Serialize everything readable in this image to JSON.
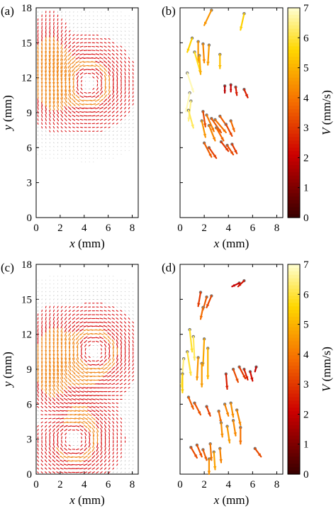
{
  "chart_data": [
    {
      "panel": "(a)",
      "type": "quiver",
      "xlabel": "x (mm)",
      "ylabel": "y (mm)",
      "xlim": [
        0,
        8.5
      ],
      "ylim": [
        0,
        18
      ],
      "xticks": [
        0,
        2,
        4,
        6,
        8
      ],
      "yticks": [
        0,
        3,
        6,
        9,
        12,
        15,
        18
      ],
      "field": "dense vector field; counter-clockwise vortex centred near (4.3, 11.5) mm, strongest velocities near x≈1, y≈13 mm",
      "vortex_centers": [
        [
          4.3,
          11.5
        ]
      ]
    },
    {
      "panel": "(b)",
      "type": "quiver",
      "xlabel": "x (mm)",
      "xlim": [
        0,
        8.5
      ],
      "ylim": [
        0,
        18
      ],
      "xticks": [
        0,
        2,
        4,
        6,
        8
      ],
      "colorbar": {
        "label": "V (mm/s)",
        "range": [
          0,
          7
        ],
        "ticks": [
          0,
          1,
          2,
          3,
          4,
          5,
          6,
          7
        ]
      },
      "arrows": [
        [
          2.6,
          17.8,
          -0.6,
          -1.3,
          4.5
        ],
        [
          5.3,
          17.5,
          -0.3,
          -1.4,
          5.5
        ],
        [
          1.0,
          15.4,
          -0.4,
          -1.2,
          5.5
        ],
        [
          1.5,
          15.1,
          0.0,
          -1.8,
          4.5
        ],
        [
          1.9,
          14.9,
          0.1,
          -1.6,
          4.3
        ],
        [
          2.4,
          14.8,
          -0.1,
          -1.7,
          4.6
        ],
        [
          1.2,
          14.2,
          0.5,
          -1.8,
          5.8
        ],
        [
          1.6,
          13.9,
          0.1,
          -1.6,
          4.9
        ],
        [
          3.3,
          14.0,
          0.0,
          -1.2,
          5.2
        ],
        [
          0.6,
          12.4,
          0.5,
          -1.6,
          6.8
        ],
        [
          3.7,
          11.3,
          0.0,
          -0.6,
          1.8
        ],
        [
          4.2,
          11.4,
          0.0,
          -0.6,
          2.1
        ],
        [
          4.6,
          11.2,
          0.1,
          -0.7,
          2.5
        ],
        [
          5.3,
          11.0,
          0.3,
          -0.7,
          2.6
        ],
        [
          0.8,
          10.7,
          -0.3,
          -1.6,
          6.8
        ],
        [
          0.9,
          10.0,
          -0.2,
          -1.7,
          6.5
        ],
        [
          0.7,
          9.2,
          0.4,
          -1.5,
          6.2
        ],
        [
          1.9,
          9.1,
          0.2,
          -1.3,
          3.3
        ],
        [
          2.2,
          8.8,
          0.6,
          -1.4,
          4.0
        ],
        [
          2.6,
          8.5,
          0.8,
          -1.2,
          3.5
        ],
        [
          2.9,
          8.4,
          0.9,
          -1.1,
          3.9
        ],
        [
          3.3,
          8.7,
          0.6,
          -0.9,
          3.6
        ],
        [
          1.8,
          8.3,
          0.3,
          -1.4,
          4.5
        ],
        [
          2.4,
          7.9,
          0.5,
          -1.3,
          4.2
        ],
        [
          3.0,
          7.7,
          0.6,
          -1.1,
          3.7
        ],
        [
          3.8,
          8.0,
          0.5,
          -1.0,
          3.2
        ],
        [
          4.2,
          8.3,
          0.3,
          -0.9,
          3.8
        ],
        [
          2.0,
          6.4,
          0.6,
          -1.2,
          3.6
        ],
        [
          2.4,
          6.0,
          0.6,
          -0.9,
          3.1
        ],
        [
          3.4,
          6.5,
          0.6,
          -0.8,
          3.0
        ],
        [
          3.9,
          6.2,
          0.5,
          -0.8,
          3.3
        ],
        [
          4.3,
          6.3,
          0.4,
          -0.8,
          3.0
        ]
      ]
    },
    {
      "panel": "(c)",
      "type": "quiver",
      "xlabel": "x (mm)",
      "ylabel": "y (mm)",
      "xlim": [
        0,
        8.5
      ],
      "ylim": [
        0,
        18
      ],
      "xticks": [
        0,
        2,
        4,
        6,
        8
      ],
      "yticks": [
        0,
        3,
        6,
        9,
        12,
        15,
        18
      ],
      "field": "dense vector field; upper counter-clockwise vortex near (4.8, 10.5) mm and lower clockwise vortex near (3.2, 3.0) mm, strongest velocities near x≈1, y≈9 mm",
      "vortex_centers": [
        [
          4.8,
          10.5
        ],
        [
          3.2,
          3.0
        ]
      ]
    },
    {
      "panel": "(d)",
      "type": "quiver",
      "xlabel": "x (mm)",
      "xlim": [
        0,
        8.5
      ],
      "ylim": [
        0,
        18
      ],
      "xticks": [
        0,
        2,
        4,
        6,
        8
      ],
      "colorbar": {
        "label": "V (mm/s)",
        "range": [
          0,
          7
        ],
        "ticks": [
          0,
          1,
          2,
          3,
          4,
          5,
          6,
          7
        ]
      },
      "arrows": [
        [
          4.9,
          16.4,
          -0.6,
          -0.3,
          2.0
        ],
        [
          5.3,
          16.6,
          -0.5,
          -0.5,
          2.4
        ],
        [
          1.7,
          15.6,
          -0.2,
          -1.2,
          3.0
        ],
        [
          2.2,
          15.2,
          -0.3,
          -1.1,
          3.5
        ],
        [
          2.6,
          15.3,
          -0.4,
          -1.0,
          3.2
        ],
        [
          1.9,
          14.3,
          -0.2,
          -1.0,
          3.8
        ],
        [
          0.8,
          12.4,
          0.2,
          -1.9,
          5.9
        ],
        [
          1.1,
          11.8,
          0.1,
          -2.0,
          6.2
        ],
        [
          0.6,
          10.5,
          0.3,
          -2.0,
          6.0
        ],
        [
          2.0,
          11.6,
          -0.1,
          -2.3,
          4.8
        ],
        [
          2.3,
          10.8,
          0.0,
          -2.6,
          5.0
        ],
        [
          1.5,
          10.0,
          -0.1,
          -1.9,
          4.5
        ],
        [
          1.8,
          9.5,
          0.0,
          -2.0,
          4.6
        ],
        [
          0.3,
          9.9,
          -0.2,
          -2.4,
          6.4
        ],
        [
          0.2,
          8.6,
          0.0,
          -1.6,
          5.5
        ],
        [
          4.4,
          9.0,
          0.4,
          -1.1,
          3.3
        ],
        [
          4.9,
          9.2,
          0.5,
          -1.0,
          3.0
        ],
        [
          5.3,
          9.0,
          0.3,
          -0.9,
          2.6
        ],
        [
          5.8,
          8.8,
          0.2,
          -0.8,
          2.3
        ],
        [
          6.3,
          9.2,
          -0.1,
          -0.4,
          1.9
        ],
        [
          3.8,
          8.6,
          0.1,
          -1.3,
          2.6
        ],
        [
          0.7,
          6.6,
          0.4,
          -1.0,
          3.6
        ],
        [
          1.2,
          6.1,
          0.5,
          -1.0,
          3.4
        ],
        [
          2.2,
          5.8,
          0.3,
          -0.8,
          3.1
        ],
        [
          3.7,
          6.0,
          0.3,
          -1.0,
          4.2
        ],
        [
          4.2,
          6.1,
          0.2,
          -1.2,
          4.4
        ],
        [
          4.7,
          5.5,
          0.3,
          -1.3,
          4.3
        ],
        [
          3.2,
          5.4,
          0.2,
          -1.0,
          3.8
        ],
        [
          3.4,
          4.4,
          0.1,
          -1.2,
          4.4
        ],
        [
          3.9,
          4.1,
          0.2,
          -1.4,
          4.6
        ],
        [
          4.4,
          4.6,
          0.2,
          -1.3,
          4.3
        ],
        [
          5.0,
          4.0,
          0.0,
          -1.4,
          3.9
        ],
        [
          0.9,
          2.3,
          0.5,
          -0.9,
          3.3
        ],
        [
          1.4,
          2.5,
          0.4,
          -1.0,
          3.4
        ],
        [
          1.9,
          2.1,
          0.3,
          -0.9,
          3.6
        ],
        [
          2.5,
          2.6,
          0.1,
          -1.4,
          4.0
        ],
        [
          2.8,
          1.9,
          0.1,
          -1.5,
          4.7
        ],
        [
          3.3,
          2.2,
          0.1,
          -1.2,
          4.2
        ],
        [
          2.4,
          1.3,
          0.0,
          -1.3,
          4.4
        ],
        [
          6.2,
          2.2,
          0.5,
          -0.7,
          3.3
        ]
      ]
    }
  ]
}
